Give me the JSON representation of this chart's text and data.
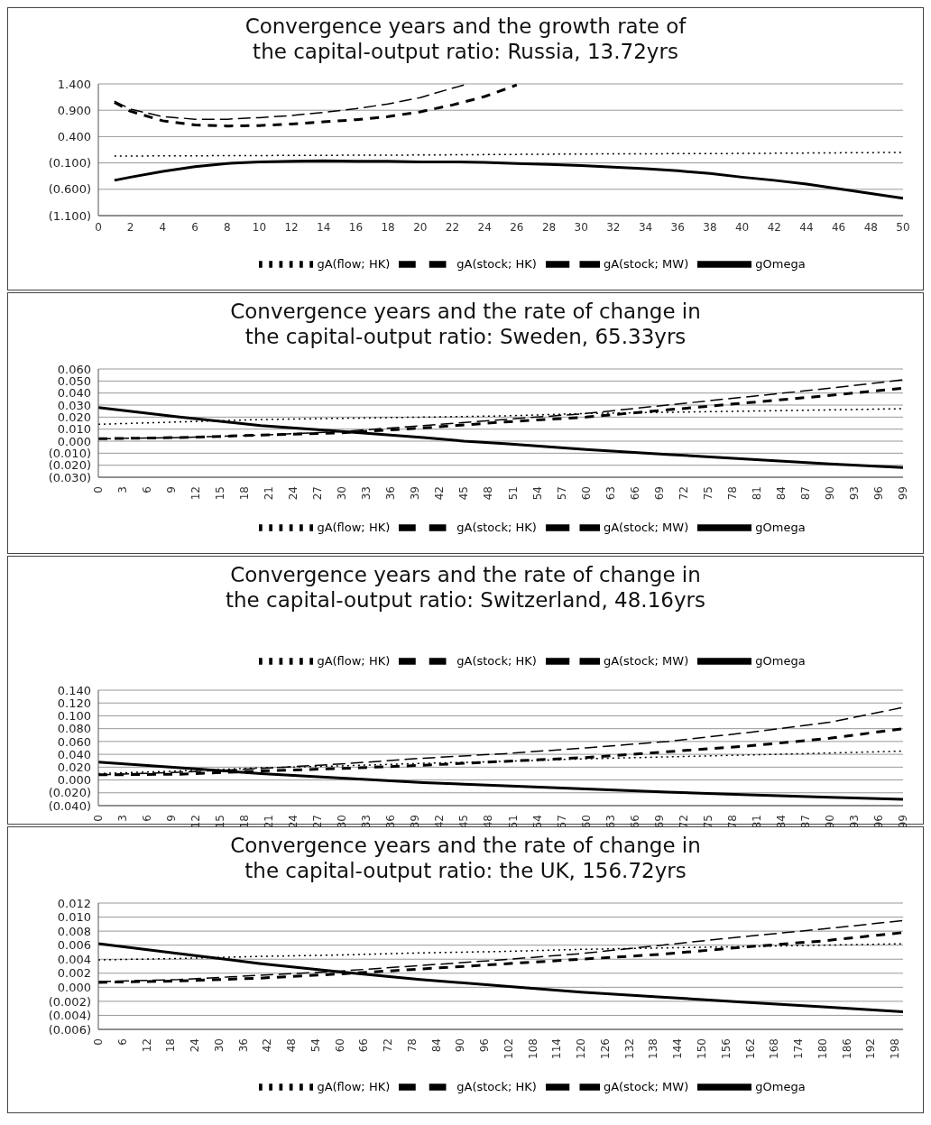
{
  "chart_data": [
    {
      "type": "line",
      "title": "Convergence years and the growth rate of\nthe capital-output ratio:  Russia, 13.72yrs",
      "xlim": [
        0,
        50
      ],
      "xticks": [
        0,
        2,
        4,
        6,
        8,
        10,
        12,
        14,
        16,
        18,
        20,
        22,
        24,
        26,
        28,
        30,
        32,
        34,
        36,
        38,
        40,
        42,
        44,
        46,
        48,
        50
      ],
      "ylim": [
        -1.1,
        1.4
      ],
      "yticks": [
        {
          "value": -1.1,
          "label": "(1.100)"
        },
        {
          "value": -0.6,
          "label": "(0.600)"
        },
        {
          "value": -0.1,
          "label": "(0.100)"
        },
        {
          "value": 0.4,
          "label": "0.400"
        },
        {
          "value": 0.9,
          "label": "0.900"
        },
        {
          "value": 1.4,
          "label": "1.400"
        }
      ],
      "grid": "y",
      "legend": "bottom",
      "marker": "none",
      "series": [
        {
          "name": "gOmega",
          "color": "#000000",
          "line_style": "solid",
          "x": [
            1,
            2,
            4,
            6,
            8,
            10,
            12,
            14,
            16,
            18,
            20,
            22,
            24,
            26,
            28,
            30,
            32,
            34,
            36,
            38,
            40,
            42,
            44,
            46,
            48,
            50
          ],
          "values": [
            -0.43,
            -0.37,
            -0.26,
            -0.17,
            -0.11,
            -0.08,
            -0.07,
            -0.06,
            -0.07,
            -0.07,
            -0.08,
            -0.08,
            -0.09,
            -0.11,
            -0.13,
            -0.15,
            -0.18,
            -0.21,
            -0.25,
            -0.3,
            -0.37,
            -0.43,
            -0.5,
            -0.59,
            -0.68,
            -0.77
          ]
        },
        {
          "name": "gA(stock; MW)",
          "color": "#000000",
          "line_style": "dashed",
          "x": [
            1,
            2,
            4,
            6,
            8,
            10,
            12,
            14,
            16,
            18,
            20,
            22,
            23
          ],
          "values": [
            1.07,
            0.92,
            0.78,
            0.73,
            0.73,
            0.76,
            0.8,
            0.86,
            0.93,
            1.02,
            1.14,
            1.32,
            1.4
          ]
        },
        {
          "name": "gA(stock; HK)",
          "color": "#000000",
          "line_style": "dashed",
          "x": [
            1,
            2,
            4,
            6,
            8,
            10,
            12,
            14,
            16,
            18,
            20,
            22,
            24,
            26
          ],
          "values": [
            1.05,
            0.88,
            0.7,
            0.62,
            0.6,
            0.61,
            0.64,
            0.68,
            0.72,
            0.78,
            0.87,
            1.0,
            1.16,
            1.38
          ]
        },
        {
          "name": "gA(flow; HK)",
          "color": "#000000",
          "line_style": "dotted",
          "x": [
            1,
            10,
            20,
            30,
            40,
            50
          ],
          "values": [
            0.03,
            0.04,
            0.05,
            0.07,
            0.08,
            0.1
          ]
        }
      ]
    },
    {
      "type": "line",
      "title": "Convergence years and the rate of change in\nthe capital-output ratio:  Sweden, 65.33yrs",
      "xlim": [
        0,
        99
      ],
      "xticks": [
        0,
        3,
        6,
        9,
        12,
        15,
        18,
        21,
        24,
        27,
        30,
        33,
        36,
        39,
        42,
        45,
        48,
        51,
        54,
        57,
        60,
        63,
        66,
        69,
        72,
        75,
        78,
        81,
        84,
        87,
        90,
        93,
        96,
        99
      ],
      "ylim": [
        -0.03,
        0.06
      ],
      "yticks": [
        {
          "value": -0.03,
          "label": "(0.030)"
        },
        {
          "value": -0.02,
          "label": "(0.020)"
        },
        {
          "value": -0.01,
          "label": "(0.010)"
        },
        {
          "value": 0,
          "label": "0.000"
        },
        {
          "value": 0.01,
          "label": "0.010"
        },
        {
          "value": 0.02,
          "label": "0.020"
        },
        {
          "value": 0.03,
          "label": "0.030"
        },
        {
          "value": 0.04,
          "label": "0.040"
        },
        {
          "value": 0.05,
          "label": "0.050"
        },
        {
          "value": 0.06,
          "label": "0.060"
        }
      ],
      "grid": "y",
      "legend": "bottom",
      "marker": "none",
      "series": [
        {
          "name": "gOmega",
          "color": "#000000",
          "line_style": "solid",
          "x": [
            0,
            10,
            20,
            30,
            40,
            45,
            50,
            60,
            70,
            80,
            90,
            99
          ],
          "values": [
            0.028,
            0.02,
            0.013,
            0.008,
            0.003,
            0.0,
            -0.002,
            -0.007,
            -0.011,
            -0.015,
            -0.019,
            -0.022
          ]
        },
        {
          "name": "gA(stock; MW)",
          "color": "#000000",
          "line_style": "dashed",
          "x": [
            0,
            10,
            20,
            30,
            40,
            50,
            60,
            70,
            80,
            90,
            99
          ],
          "values": [
            0.002,
            0.003,
            0.005,
            0.008,
            0.013,
            0.018,
            0.023,
            0.03,
            0.037,
            0.044,
            0.051
          ]
        },
        {
          "name": "gA(stock; HK)",
          "color": "#000000",
          "line_style": "dashed",
          "x": [
            0,
            10,
            20,
            30,
            40,
            50,
            60,
            70,
            80,
            90,
            99
          ],
          "values": [
            0.002,
            0.003,
            0.005,
            0.007,
            0.011,
            0.016,
            0.02,
            0.026,
            0.032,
            0.038,
            0.044
          ]
        },
        {
          "name": "gA(flow; HK)",
          "color": "#000000",
          "line_style": "dotted",
          "x": [
            0,
            10,
            20,
            30,
            40,
            50,
            60,
            70,
            80,
            90,
            99
          ],
          "values": [
            0.014,
            0.016,
            0.018,
            0.019,
            0.02,
            0.021,
            0.023,
            0.024,
            0.025,
            0.026,
            0.027
          ]
        }
      ]
    },
    {
      "type": "line",
      "title": "Convergence years and the rate of change in\nthe capital-output ratio:  Switzerland, 48.16yrs",
      "xlim": [
        0,
        99
      ],
      "xticks": [
        0,
        3,
        6,
        9,
        12,
        15,
        18,
        21,
        24,
        27,
        30,
        33,
        36,
        39,
        42,
        45,
        48,
        51,
        54,
        57,
        60,
        63,
        66,
        69,
        72,
        75,
        78,
        81,
        84,
        87,
        90,
        93,
        96,
        99
      ],
      "ylim": [
        -0.04,
        0.14
      ],
      "yticks": [
        {
          "value": -0.04,
          "label": "(0.040)"
        },
        {
          "value": -0.02,
          "label": "(0.020)"
        },
        {
          "value": 0,
          "label": "0.000"
        },
        {
          "value": 0.02,
          "label": "0.020"
        },
        {
          "value": 0.04,
          "label": "0.040"
        },
        {
          "value": 0.06,
          "label": "0.060"
        },
        {
          "value": 0.08,
          "label": "0.080"
        },
        {
          "value": 0.1,
          "label": "0.100"
        },
        {
          "value": 0.12,
          "label": "0.120"
        },
        {
          "value": 0.14,
          "label": "0.140"
        }
      ],
      "grid": "y",
      "legend": "top",
      "marker": "none",
      "series": [
        {
          "name": "gOmega",
          "color": "#000000",
          "line_style": "solid",
          "x": [
            0,
            10,
            20,
            30,
            40,
            50,
            60,
            70,
            80,
            90,
            99
          ],
          "values": [
            0.028,
            0.019,
            0.01,
            0.003,
            -0.004,
            -0.009,
            -0.014,
            -0.019,
            -0.023,
            -0.027,
            -0.03
          ]
        },
        {
          "name": "gA(stock; MW)",
          "color": "#000000",
          "line_style": "dashed",
          "x": [
            0,
            10,
            20,
            30,
            40,
            50,
            60,
            70,
            80,
            90,
            99
          ],
          "values": [
            0.008,
            0.012,
            0.018,
            0.025,
            0.034,
            0.041,
            0.05,
            0.06,
            0.074,
            0.09,
            0.113
          ]
        },
        {
          "name": "gA(stock; HK)",
          "color": "#000000",
          "line_style": "dashed",
          "x": [
            0,
            10,
            20,
            30,
            40,
            50,
            60,
            70,
            80,
            90,
            99
          ],
          "values": [
            0.008,
            0.009,
            0.014,
            0.018,
            0.023,
            0.029,
            0.035,
            0.044,
            0.053,
            0.065,
            0.08
          ]
        },
        {
          "name": "gA(flow; HK)",
          "color": "#000000",
          "line_style": "dotted",
          "x": [
            0,
            10,
            20,
            30,
            40,
            50,
            60,
            70,
            80,
            90,
            99
          ],
          "values": [
            0.01,
            0.014,
            0.019,
            0.022,
            0.026,
            0.029,
            0.033,
            0.036,
            0.039,
            0.042,
            0.045
          ]
        }
      ]
    },
    {
      "type": "line",
      "title": "Convergence years and the rate of change in\nthe capital-output ratio:  the UK, 156.72yrs",
      "xlim": [
        0,
        200
      ],
      "xticks": [
        0,
        6,
        12,
        18,
        24,
        30,
        36,
        42,
        48,
        54,
        60,
        66,
        72,
        78,
        84,
        90,
        96,
        102,
        108,
        114,
        120,
        126,
        132,
        138,
        144,
        150,
        156,
        162,
        168,
        174,
        180,
        186,
        192,
        198
      ],
      "ylim": [
        -0.006,
        0.012
      ],
      "yticks": [
        {
          "value": -0.006,
          "label": "(0.006)"
        },
        {
          "value": -0.004,
          "label": "(0.004)"
        },
        {
          "value": -0.002,
          "label": "(0.002)"
        },
        {
          "value": 0,
          "label": "0.000"
        },
        {
          "value": 0.002,
          "label": "0.002"
        },
        {
          "value": 0.004,
          "label": "0.004"
        },
        {
          "value": 0.006,
          "label": "0.006"
        },
        {
          "value": 0.008,
          "label": "0.008"
        },
        {
          "value": 0.01,
          "label": "0.010"
        },
        {
          "value": 0.012,
          "label": "0.012"
        }
      ],
      "grid": "y",
      "legend": "bottom",
      "marker": "none",
      "series": [
        {
          "name": "gOmega",
          "color": "#000000",
          "line_style": "solid",
          "x": [
            0,
            20,
            40,
            60,
            80,
            100,
            120,
            140,
            160,
            180,
            200
          ],
          "values": [
            0.0062,
            0.0048,
            0.0034,
            0.0022,
            0.0011,
            0.0002,
            -0.0007,
            -0.0014,
            -0.0021,
            -0.0028,
            -0.0035
          ]
        },
        {
          "name": "gA(stock; MW)",
          "color": "#000000",
          "line_style": "dashed",
          "x": [
            0,
            20,
            40,
            60,
            80,
            100,
            120,
            140,
            160,
            180,
            200
          ],
          "values": [
            0.0008,
            0.0011,
            0.0017,
            0.0023,
            0.0031,
            0.0039,
            0.0048,
            0.006,
            0.0072,
            0.0083,
            0.0095
          ]
        },
        {
          "name": "gA(stock; HK)",
          "color": "#000000",
          "line_style": "dashed",
          "x": [
            0,
            20,
            40,
            60,
            80,
            100,
            120,
            140,
            160,
            180,
            200
          ],
          "values": [
            0.0007,
            0.0009,
            0.0013,
            0.0019,
            0.0026,
            0.0033,
            0.004,
            0.0047,
            0.0057,
            0.0066,
            0.0078
          ]
        },
        {
          "name": "gA(flow; HK)",
          "color": "#000000",
          "line_style": "dotted",
          "x": [
            0,
            20,
            40,
            60,
            80,
            100,
            120,
            140,
            160,
            180,
            200
          ],
          "values": [
            0.0039,
            0.0041,
            0.0044,
            0.0046,
            0.0049,
            0.0051,
            0.0054,
            0.0056,
            0.0058,
            0.006,
            0.0062
          ]
        }
      ]
    }
  ]
}
